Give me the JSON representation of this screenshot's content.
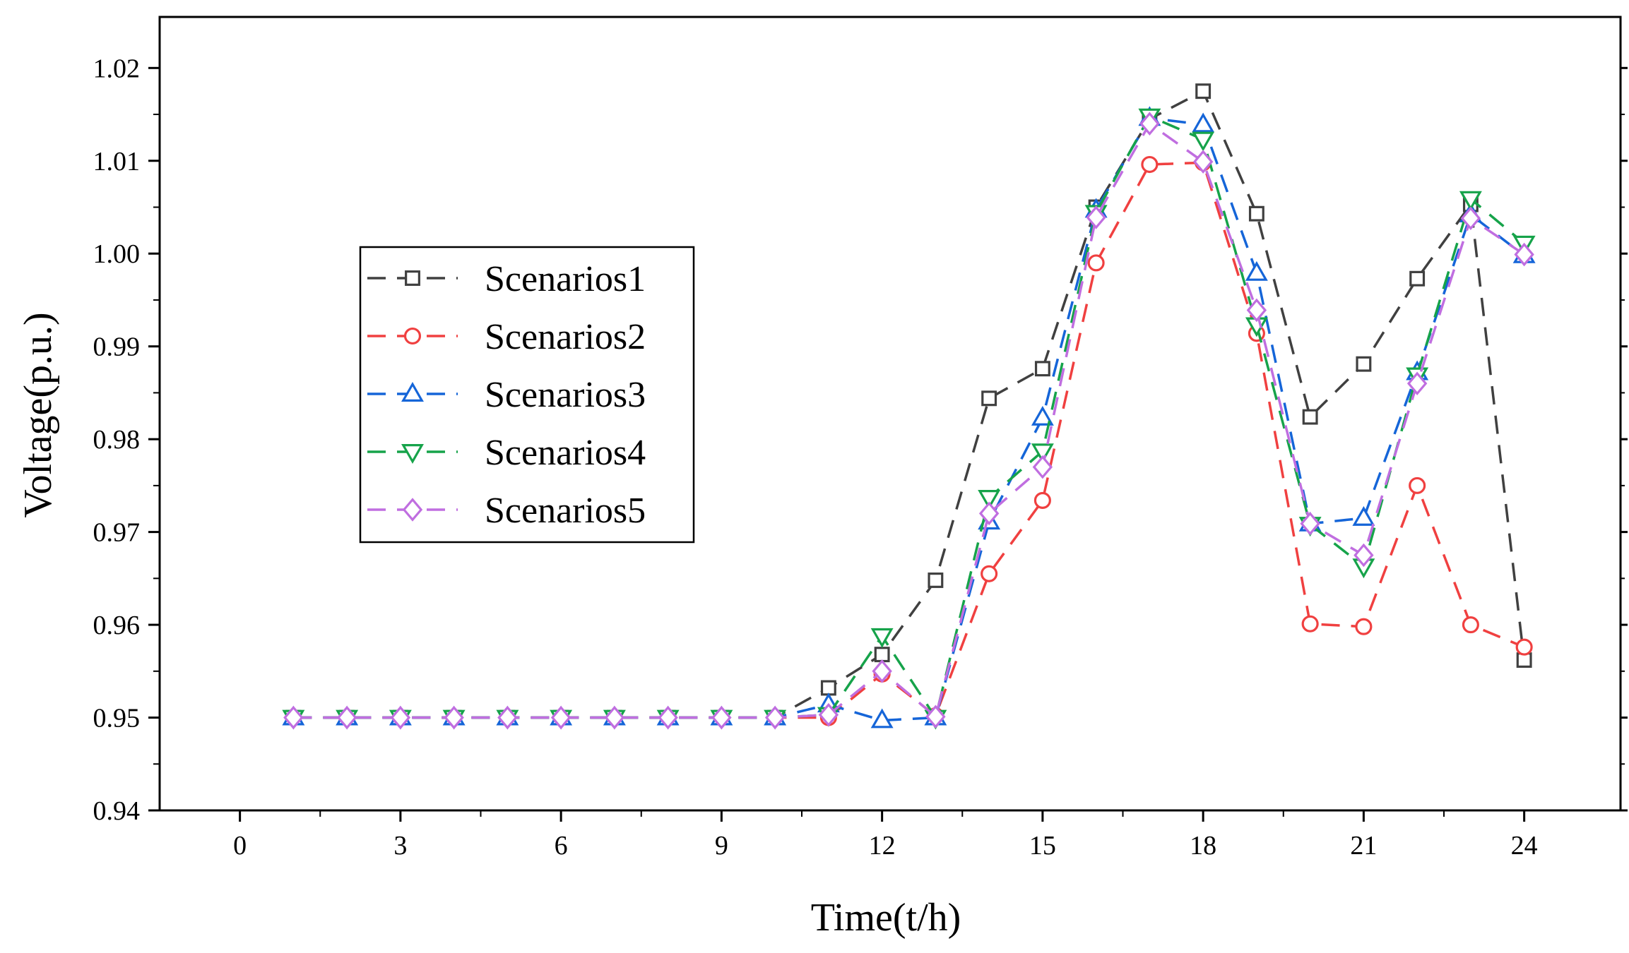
{
  "chart_data": {
    "type": "line",
    "title": "",
    "xlabel": "Time(t/h)",
    "ylabel": "Voltage(p.u.)",
    "xlim": [
      -1.5,
      25.8
    ],
    "ylim": [
      0.94,
      1.0255
    ],
    "xticks": [
      0,
      3,
      6,
      9,
      12,
      15,
      18,
      21,
      24
    ],
    "xtick_labels": [
      "0",
      "3",
      "6",
      "9",
      "12",
      "15",
      "18",
      "21",
      "24"
    ],
    "yticks": [
      0.94,
      0.95,
      0.96,
      0.97,
      0.98,
      0.99,
      1.0,
      1.01,
      1.02
    ],
    "ytick_labels": [
      "0.94",
      "0.95",
      "0.96",
      "0.97",
      "0.98",
      "0.99",
      "1.00",
      "1.01",
      "1.02"
    ],
    "grid": false,
    "legend_position": "center-left",
    "x": [
      1,
      2,
      3,
      4,
      5,
      6,
      7,
      8,
      9,
      10,
      11,
      12,
      13,
      14,
      15,
      16,
      17,
      18,
      19,
      20,
      21,
      22,
      23,
      24
    ],
    "series": [
      {
        "name": "Scenarios1",
        "marker": "square",
        "color": "#404040",
        "values": [
          0.95,
          0.95,
          0.95,
          0.95,
          0.95,
          0.95,
          0.95,
          0.95,
          0.95,
          0.95,
          0.9532,
          0.9568,
          0.9648,
          0.9844,
          0.9876,
          1.005,
          1.0145,
          1.0175,
          1.0043,
          0.9824,
          0.9881,
          0.9973,
          1.0053,
          0.9562
        ]
      },
      {
        "name": "Scenarios2",
        "marker": "circle",
        "color": "#f04040",
        "values": [
          0.95,
          0.95,
          0.95,
          0.95,
          0.95,
          0.95,
          0.95,
          0.95,
          0.95,
          0.95,
          0.95,
          0.9547,
          0.9502,
          0.9655,
          0.9734,
          0.999,
          1.0096,
          1.0098,
          0.9914,
          0.9601,
          0.9598,
          0.975,
          0.96,
          0.9576
        ]
      },
      {
        "name": "Scenarios3",
        "marker": "triangle-up",
        "color": "#1565d8",
        "values": [
          0.95,
          0.95,
          0.95,
          0.95,
          0.95,
          0.95,
          0.95,
          0.95,
          0.95,
          0.95,
          0.9514,
          0.9497,
          0.95,
          0.9711,
          0.9823,
          1.0047,
          1.0146,
          1.0139,
          0.9979,
          0.9709,
          0.9715,
          0.9872,
          1.0042,
          0.9998
        ]
      },
      {
        "name": "Scenarios4",
        "marker": "triangle-down",
        "color": "#16a34a",
        "values": [
          0.95,
          0.95,
          0.95,
          0.95,
          0.95,
          0.95,
          0.95,
          0.95,
          0.95,
          0.95,
          0.9503,
          0.9588,
          0.95,
          0.9737,
          0.9787,
          1.0044,
          1.0148,
          1.0123,
          0.9923,
          0.9708,
          0.9663,
          0.9869,
          1.0059,
          1.0011
        ]
      },
      {
        "name": "Scenarios5",
        "marker": "diamond",
        "color": "#c06ee0",
        "values": [
          0.95,
          0.95,
          0.95,
          0.95,
          0.95,
          0.95,
          0.95,
          0.95,
          0.95,
          0.95,
          0.9503,
          0.955,
          0.9501,
          0.972,
          0.977,
          1.0039,
          1.014,
          1.0099,
          0.9939,
          0.9709,
          0.9675,
          0.986,
          1.0038,
          0.9999
        ]
      }
    ]
  }
}
